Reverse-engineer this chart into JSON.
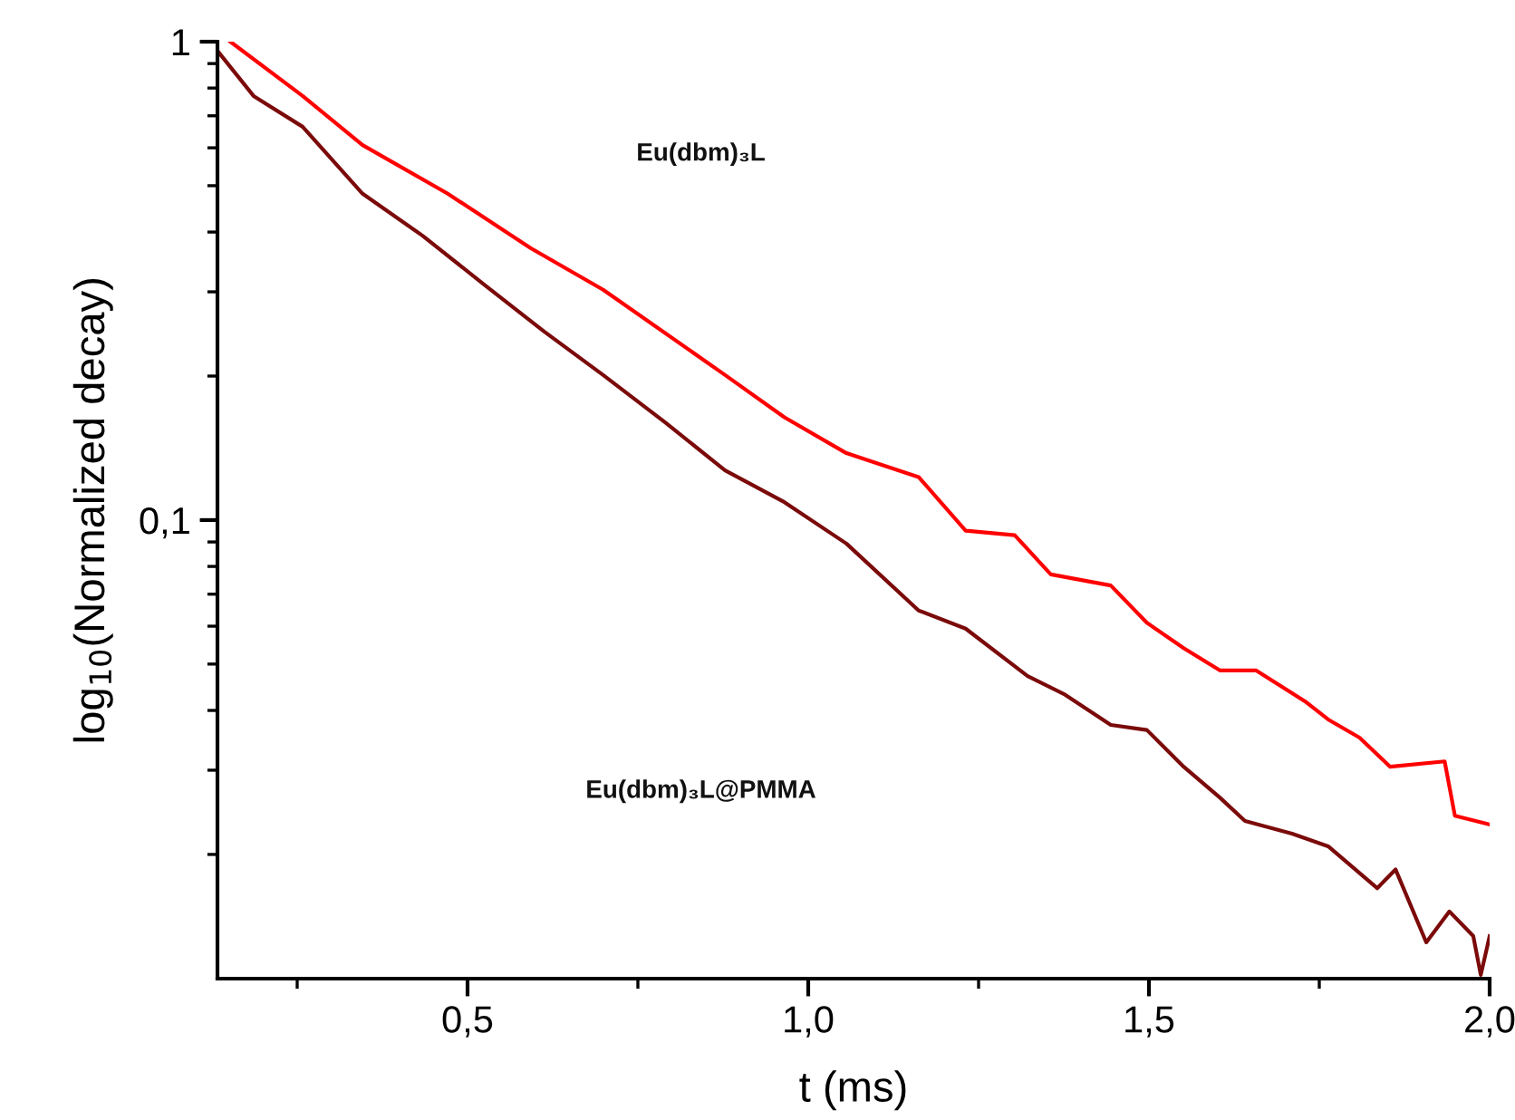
{
  "chart_data": {
    "type": "line",
    "xlabel": "t (ms)",
    "ylabel": "log$_{10}$(Normalized decay)",
    "log": "y",
    "grid": false,
    "legend": false,
    "marker": "none",
    "line_style": "solid",
    "xlim": [
      0.133,
      2.0
    ],
    "ylim": [
      0.011,
      1
    ],
    "xticks": [
      {
        "value": 0.25,
        "label": null
      },
      {
        "value": 0.5,
        "label": "0,5"
      },
      {
        "value": 0.75,
        "label": null
      },
      {
        "value": 1.0,
        "label": "1,0"
      },
      {
        "value": 1.25,
        "label": null
      },
      {
        "value": 1.5,
        "label": "1,5"
      },
      {
        "value": 1.75,
        "label": null
      },
      {
        "value": 2.0,
        "label": "2,0"
      }
    ],
    "yticks": [
      {
        "value": 0.02,
        "label": null
      },
      {
        "value": 0.03,
        "label": null
      },
      {
        "value": 0.04,
        "label": null
      },
      {
        "value": 0.05,
        "label": null
      },
      {
        "value": 0.06,
        "label": null
      },
      {
        "value": 0.07,
        "label": null
      },
      {
        "value": 0.08,
        "label": null
      },
      {
        "value": 0.09,
        "label": null
      },
      {
        "value": 0.1,
        "label": "0,1"
      },
      {
        "value": 0.2,
        "label": null
      },
      {
        "value": 0.3,
        "label": null
      },
      {
        "value": 0.4,
        "label": null
      },
      {
        "value": 0.5,
        "label": null
      },
      {
        "value": 0.6,
        "label": null
      },
      {
        "value": 0.7,
        "label": null
      },
      {
        "value": 0.8,
        "label": null
      },
      {
        "value": 0.9,
        "label": null
      },
      1
    ],
    "annotations": [
      "Eu(dbm)₃L",
      "Eu(dbm)₃L@PMMA"
    ],
    "series": [
      {
        "color": "#ff0000",
        "x": [
          0.152,
          0.258,
          0.346,
          0.471,
          0.593,
          0.699,
          0.878,
          0.965,
          1.056,
          1.162,
          1.231,
          1.303,
          1.356,
          1.444,
          1.497,
          1.551,
          1.604,
          1.657,
          1.729,
          1.763,
          1.809,
          1.854,
          1.934,
          1.949,
          2.0
        ],
        "values": [
          1.0,
          0.77,
          0.608,
          0.481,
          0.37,
          0.303,
          0.201,
          0.164,
          0.138,
          0.123,
          0.095,
          0.093,
          0.077,
          0.073,
          0.061,
          0.054,
          0.0485,
          0.0485,
          0.0418,
          0.0383,
          0.0351,
          0.0305,
          0.0313,
          0.0241,
          0.0231
        ]
      },
      {
        "color": "#7b0a0a",
        "x": [
          0.133,
          0.186,
          0.258,
          0.346,
          0.434,
          0.524,
          0.612,
          0.699,
          0.79,
          0.878,
          0.965,
          1.056,
          1.162,
          1.231,
          1.322,
          1.375,
          1.444,
          1.497,
          1.551,
          1.604,
          1.641,
          1.71,
          1.763,
          1.835,
          1.862,
          1.907,
          1.941,
          1.976,
          1.987,
          2.0
        ],
        "values": [
          0.957,
          0.77,
          0.664,
          0.481,
          0.393,
          0.311,
          0.248,
          0.201,
          0.16,
          0.127,
          0.109,
          0.0893,
          0.0647,
          0.0593,
          0.0472,
          0.0433,
          0.0373,
          0.0364,
          0.0305,
          0.0263,
          0.0235,
          0.0221,
          0.0208,
          0.017,
          0.0186,
          0.0131,
          0.0152,
          0.0135,
          0.0112,
          0.0135
        ]
      }
    ]
  }
}
